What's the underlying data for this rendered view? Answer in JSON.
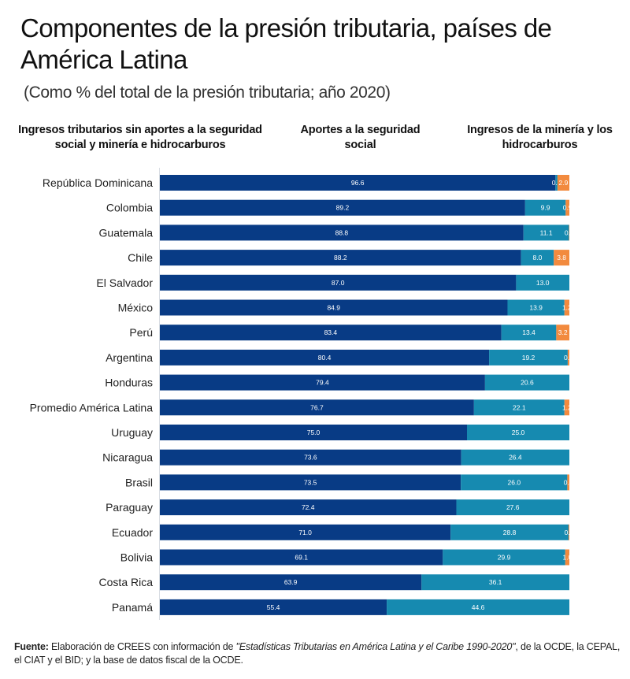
{
  "chart_data": {
    "type": "bar",
    "orientation": "horizontal",
    "stacked": true,
    "title": "Componentes de la presión tributaria, países de América Latina",
    "subtitle": "(Como % del total de la presión tributaria;  año 2020)",
    "xlabel": "",
    "ylabel": "",
    "xlim": [
      0,
      100
    ],
    "grid": false,
    "legend_position": "top",
    "categories": [
      "República Dominicana",
      "Colombia",
      "Guatemala",
      "Chile",
      "El Salvador",
      "México",
      "Perú",
      "Argentina",
      "Honduras",
      "Promedio América Latina",
      "Uruguay",
      "Nicaragua",
      "Brasil",
      "Paraguay",
      "Ecuador",
      "Bolivia",
      "Costa Rica",
      "Panamá"
    ],
    "series": [
      {
        "name": "Ingresos tributarios sin aportes a la seguridad social y minería e hidrocarburos",
        "color": "#083b85",
        "values": [
          96.6,
          89.2,
          88.8,
          88.2,
          87.0,
          84.9,
          83.4,
          80.4,
          79.4,
          76.7,
          75.0,
          73.6,
          73.5,
          72.4,
          71.0,
          69.1,
          63.9,
          55.4
        ],
        "labels": [
          "96.6",
          "89.2",
          "88.8",
          "88.2",
          "87.0",
          "84.9",
          "83.4",
          "80.4",
          "79.4",
          "76.7",
          "75.0",
          "73.6",
          "73.5",
          "72.4",
          "71.0",
          "69.1",
          "63.9",
          "55.4"
        ]
      },
      {
        "name": "Aportes a la seguridad social",
        "color": "#168ab0",
        "values": [
          0.5,
          9.9,
          11.1,
          8.0,
          13.0,
          13.9,
          13.4,
          19.2,
          20.6,
          22.1,
          25.0,
          26.4,
          26.0,
          27.6,
          28.8,
          29.9,
          36.1,
          44.6
        ],
        "labels": [
          "0.5",
          "9.9",
          "11.1",
          "8.0",
          "13.0",
          "13.9",
          "13.4",
          "19.2",
          "20.6",
          "22.1",
          "25.0",
          "26.4",
          "26.0",
          "27.6",
          "28.8",
          "29.9",
          "36.1",
          "44.6"
        ]
      },
      {
        "name": "Ingresos de la minería y los hidrocarburos",
        "color": "#f28a3e",
        "values": [
          2.9,
          0.9,
          0.1,
          3.8,
          0.0,
          1.2,
          3.2,
          0.4,
          0.0,
          1.2,
          0.0,
          0.0,
          0.5,
          0.0,
          0.2,
          1.0,
          0.0,
          0.0
        ],
        "labels": [
          "2.9",
          "0.9",
          "0.1",
          "3.8",
          "",
          "1.2",
          "3.2",
          "0.4",
          "",
          "1.2",
          "",
          "",
          "0.5",
          "",
          "0.2",
          "1.0",
          "",
          ""
        ]
      }
    ]
  },
  "legend": {
    "a": "Ingresos tributarios sin aportes a la seguridad social y minería e hidrocarburos",
    "b": "Aportes a la seguridad social",
    "c": "Ingresos de la minería y los hidrocarburos"
  },
  "colors": {
    "series_a": "#083b85",
    "series_b": "#168ab0",
    "series_c": "#f28a3e",
    "axis": "#d8dde3"
  },
  "footer": {
    "bold": "Fuente:",
    "text1": " Elaboración de CREES con información de ",
    "italic": "\"Estadísticas Tributarias en América Latina y el Caribe 1990-2020\"",
    "text2": ", de la OCDE, la CEPAL, el CIAT y el BID; y la base de datos fiscal de la OCDE."
  }
}
